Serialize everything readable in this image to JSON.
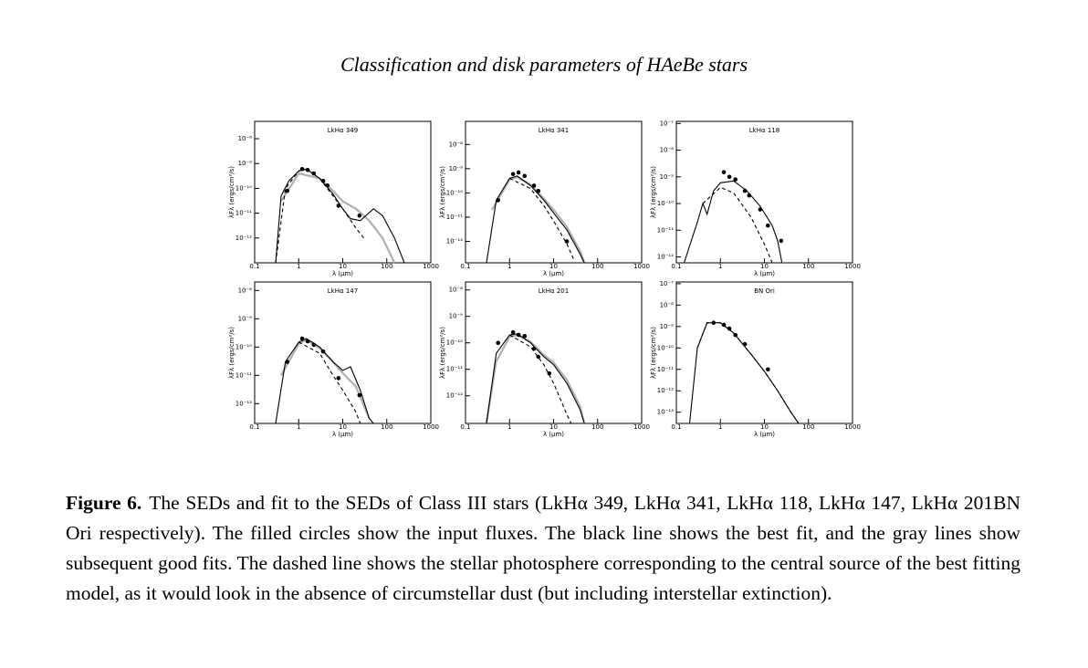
{
  "header": {
    "title": "Classification and disk parameters of HAeBe stars"
  },
  "caption": {
    "label": "Figure 6.",
    "text": "The SEDs and fit to the SEDs of Class III stars (LkHα 349, LkHα 341, LkHα 118, LkHα 147, LkHα 201BN Ori respectively). The filled circles show the input fluxes. The black line shows the best fit, and the gray lines show subsequent good fits. The dashed line shows the stellar photosphere corresponding to the central source of the best fitting model, as it would look in the absence of circumstellar dust (but including interstellar extinction)."
  },
  "chart_data": [
    {
      "type": "line",
      "title": "LkHα 349",
      "xlabel": "λ (μm)",
      "ylabel": "λFλ (ergs/cm²/s)",
      "log_x": true,
      "log_y": true,
      "xlim": [
        0.1,
        1000
      ],
      "xticks": [
        0.1,
        1,
        10,
        100,
        1000
      ],
      "ylim": [
        1e-13,
        5e-08
      ],
      "yticks": [
        {
          "value": 1e-08,
          "label": "10⁻⁸"
        },
        {
          "value": 1e-09,
          "label": "10⁻⁹"
        },
        {
          "value": 1e-10,
          "label": "10⁻¹⁰"
        },
        {
          "value": 1e-11,
          "label": "10⁻¹¹"
        },
        {
          "value": 1e-12,
          "label": "10⁻¹²"
        }
      ],
      "series": [
        {
          "style": "gray",
          "color": "#b0b0b0",
          "x": [
            0.4,
            1,
            3,
            6,
            10,
            20,
            40,
            80,
            150
          ],
          "values": [
            3e-11,
            4e-10,
            2.5e-10,
            8e-11,
            3e-11,
            1.5e-11,
            5e-12,
            1e-12,
            1e-13
          ]
        },
        {
          "style": "dashed",
          "color": "#000000",
          "x": [
            0.3,
            0.5,
            1,
            1.5,
            3,
            6,
            10,
            20,
            30
          ],
          "values": [
            1e-13,
            1e-10,
            5e-10,
            6e-10,
            2.5e-10,
            5e-11,
            1.5e-11,
            2.5e-12,
            1e-12
          ]
        },
        {
          "style": "solid",
          "color": "#000000",
          "x": [
            0.3,
            0.4,
            0.6,
            1,
            1.5,
            3,
            6,
            10,
            15,
            25,
            50,
            80,
            150,
            250
          ],
          "values": [
            1e-13,
            5e-11,
            2e-10,
            5e-10,
            6e-10,
            2.5e-10,
            6e-11,
            1.5e-11,
            6e-12,
            5e-12,
            1.5e-11,
            8e-12,
            1e-12,
            1e-13
          ]
        },
        {
          "style": "points",
          "color": "#000000",
          "x": [
            0.55,
            1.2,
            1.6,
            2.2,
            3.6,
            4.5,
            8,
            24
          ],
          "values": [
            8e-11,
            6e-10,
            5.5e-10,
            4e-10,
            2e-10,
            1.3e-10,
            2e-11,
            8e-12
          ]
        }
      ]
    },
    {
      "type": "line",
      "title": "LkHα 341",
      "xlabel": "λ (μm)",
      "ylabel": "λFλ (ergs/cm²/s)",
      "log_x": true,
      "log_y": true,
      "xlim": [
        0.1,
        1000
      ],
      "xticks": [
        0.1,
        1,
        10,
        100,
        1000
      ],
      "ylim": [
        1.3e-13,
        9e-08
      ],
      "yticks": [
        {
          "value": 1e-08,
          "label": "10⁻⁸"
        },
        {
          "value": 1e-09,
          "label": "10⁻⁹"
        },
        {
          "value": 1e-10,
          "label": "10⁻¹⁰"
        },
        {
          "value": 1e-11,
          "label": "10⁻¹¹"
        },
        {
          "value": 1e-12,
          "label": "10⁻¹²"
        }
      ],
      "series": [
        {
          "style": "gray",
          "color": "#b0b0b0",
          "x": [
            0.4,
            1,
            1.5,
            3,
            6,
            10,
            20,
            40,
            50
          ],
          "values": [
            2e-11,
            3.5e-10,
            4.5e-10,
            2.2e-10,
            6e-11,
            2e-11,
            4e-12,
            4e-13,
            1.3e-13
          ]
        },
        {
          "style": "dashed",
          "color": "#000000",
          "x": [
            1,
            3,
            6,
            10,
            20,
            30
          ],
          "values": [
            4e-10,
            1.5e-10,
            3e-11,
            7e-12,
            8e-13,
            1.5e-13
          ]
        },
        {
          "style": "solid",
          "color": "#000000",
          "x": [
            0.3,
            0.5,
            1,
            1.5,
            3,
            6,
            10,
            20,
            40,
            50
          ],
          "values": [
            1.3e-13,
            5e-11,
            4e-10,
            5e-10,
            2e-10,
            5e-11,
            1.5e-11,
            3e-12,
            3e-13,
            1.3e-13
          ]
        },
        {
          "style": "points",
          "color": "#000000",
          "x": [
            0.55,
            1.2,
            1.6,
            2.2,
            3.6,
            4.5,
            20
          ],
          "values": [
            5e-11,
            6e-10,
            7e-10,
            5e-10,
            2e-10,
            1.2e-10,
            1e-12
          ]
        }
      ]
    },
    {
      "type": "line",
      "title": "LkHα 118",
      "xlabel": "λ (μm)",
      "ylabel": "λFλ (ergs/cm²/s)",
      "log_x": true,
      "log_y": true,
      "xlim": [
        0.1,
        1000
      ],
      "xticks": [
        0.1,
        1,
        10,
        100,
        1000
      ],
      "ylim": [
        6e-13,
        1.2e-07
      ],
      "yticks": [
        {
          "value": 1e-07,
          "label": "10⁻⁷"
        },
        {
          "value": 1e-08,
          "label": "10⁻⁸"
        },
        {
          "value": 1e-09,
          "label": "10⁻⁹"
        },
        {
          "value": 1e-10,
          "label": "10⁻¹⁰"
        },
        {
          "value": 1e-11,
          "label": "10⁻¹¹"
        },
        {
          "value": 1e-12,
          "label": "10⁻¹²"
        }
      ],
      "series": [
        {
          "style": "dashed",
          "color": "#000000",
          "x": [
            0.4,
            1,
            2,
            5,
            10,
            15
          ],
          "values": [
            1e-10,
            4e-10,
            2.5e-10,
            3e-11,
            3e-12,
            6e-13
          ]
        },
        {
          "style": "solid",
          "color": "#000000",
          "x": [
            0.15,
            0.3,
            0.4,
            0.5,
            0.7,
            1,
            2,
            4,
            8,
            15,
            20,
            25
          ],
          "values": [
            6e-13,
            2e-11,
            1e-10,
            4e-11,
            3e-10,
            6e-10,
            7e-10,
            3e-10,
            8e-11,
            1.5e-11,
            4e-12,
            6e-13
          ]
        },
        {
          "style": "points",
          "color": "#000000",
          "x": [
            1.2,
            1.6,
            2.2,
            3.6,
            4.5,
            8,
            12,
            24
          ],
          "values": [
            1.5e-09,
            1e-09,
            8e-10,
            3e-10,
            2e-10,
            6e-11,
            1.5e-11,
            4e-12
          ]
        }
      ]
    },
    {
      "type": "line",
      "title": "LkHα 147",
      "xlabel": "λ (μm)",
      "ylabel": "λFλ (ergs/cm²/s)",
      "log_x": true,
      "log_y": true,
      "xlim": [
        0.1,
        1000
      ],
      "xticks": [
        0.1,
        1,
        10,
        100,
        1000
      ],
      "ylim": [
        2e-13,
        2e-08
      ],
      "yticks": [
        {
          "value": 1e-08,
          "label": "10⁻⁸"
        },
        {
          "value": 1e-09,
          "label": "10⁻⁹"
        },
        {
          "value": 1e-10,
          "label": "10⁻¹⁰"
        },
        {
          "value": 1e-11,
          "label": "10⁻¹¹"
        },
        {
          "value": 1e-12,
          "label": "10⁻¹²"
        }
      ],
      "series": [
        {
          "style": "gray",
          "color": "#b0b0b0",
          "x": [
            0.4,
            1,
            1.5,
            3,
            6,
            10,
            20,
            40
          ],
          "values": [
            1e-11,
            1.3e-10,
            1.8e-10,
            9e-11,
            3e-11,
            1.2e-11,
            4e-12,
            3e-13
          ]
        },
        {
          "style": "dashed",
          "color": "#000000",
          "x": [
            1,
            3,
            6,
            10,
            20,
            25
          ],
          "values": [
            1.5e-10,
            6e-11,
            1e-11,
            3e-12,
            5e-13,
            2e-13
          ]
        },
        {
          "style": "solid",
          "color": "#000000",
          "x": [
            0.3,
            0.5,
            1,
            1.5,
            3,
            6,
            10,
            15,
            25,
            40,
            50
          ],
          "values": [
            2e-13,
            3e-11,
            1.5e-10,
            2e-10,
            1e-10,
            3e-11,
            1.5e-11,
            2e-11,
            3e-12,
            3e-13,
            2e-13
          ]
        },
        {
          "style": "points",
          "color": "#000000",
          "x": [
            0.55,
            1.2,
            1.6,
            2.2,
            3.6,
            8,
            24
          ],
          "values": [
            3e-11,
            2e-10,
            1.6e-10,
            1.2e-10,
            7e-11,
            8e-12,
            2e-12
          ]
        }
      ]
    },
    {
      "type": "line",
      "title": "LkHα 201",
      "xlabel": "λ (μm)",
      "ylabel": "λFλ (ergs/cm²/s)",
      "log_x": true,
      "log_y": true,
      "xlim": [
        0.1,
        1000
      ],
      "xticks": [
        0.1,
        1,
        10,
        100,
        1000
      ],
      "ylim": [
        9e-14,
        2e-08
      ],
      "yticks": [
        {
          "value": 1e-08,
          "label": "10⁻⁸"
        },
        {
          "value": 1e-09,
          "label": "10⁻⁹"
        },
        {
          "value": 1e-10,
          "label": "10⁻¹⁰"
        },
        {
          "value": 1e-11,
          "label": "10⁻¹¹"
        },
        {
          "value": 1e-12,
          "label": "10⁻¹²"
        }
      ],
      "series": [
        {
          "style": "gray",
          "color": "#b0b0b0",
          "x": [
            0.3,
            0.5,
            1,
            1.5,
            3,
            6,
            10,
            20,
            40,
            50
          ],
          "values": [
            1e-13,
            2e-11,
            1.7e-10,
            2e-10,
            1.1e-10,
            3.5e-11,
            1.8e-11,
            4e-12,
            4e-13,
            9e-14
          ]
        },
        {
          "style": "dashed",
          "color": "#000000",
          "x": [
            1,
            3,
            6,
            10,
            20,
            25
          ],
          "values": [
            2e-10,
            7e-11,
            1.5e-11,
            3e-12,
            2e-13,
            9e-14
          ]
        },
        {
          "style": "solid",
          "color": "#000000",
          "x": [
            0.3,
            0.5,
            1,
            1.5,
            3,
            6,
            10,
            20,
            40,
            50
          ],
          "values": [
            9e-14,
            4e-11,
            2e-10,
            2.2e-10,
            1e-10,
            3e-11,
            1.5e-11,
            3e-12,
            3e-13,
            9e-14
          ]
        },
        {
          "style": "points",
          "color": "#000000",
          "x": [
            0.55,
            1.2,
            1.6,
            2.2,
            3.6,
            4.5,
            8
          ],
          "values": [
            1e-10,
            2.5e-10,
            2e-10,
            1.8e-10,
            6e-11,
            3e-11,
            7e-12
          ]
        }
      ]
    },
    {
      "type": "line",
      "title": "BN Ori",
      "xlabel": "λ (μm)",
      "ylabel": "λFλ (ergs/cm²/s)",
      "log_x": true,
      "log_y": true,
      "xlim": [
        0.1,
        1000
      ],
      "xticks": [
        0.1,
        1,
        10,
        100,
        1000
      ],
      "ylim": [
        3e-14,
        1.2e-07
      ],
      "yticks": [
        {
          "value": 1e-07,
          "label": "10⁻⁷"
        },
        {
          "value": 1e-08,
          "label": "10⁻⁸"
        },
        {
          "value": 1e-09,
          "label": "10⁻⁹"
        },
        {
          "value": 1e-10,
          "label": "10⁻¹⁰"
        },
        {
          "value": 1e-11,
          "label": "10⁻¹¹"
        },
        {
          "value": 1e-12,
          "label": "10⁻¹²"
        },
        {
          "value": 1e-13,
          "label": "10⁻¹³"
        }
      ],
      "series": [
        {
          "style": "dashed",
          "color": "#000000",
          "x": [
            0.3,
            0.5,
            1,
            2,
            5,
            10,
            20,
            40,
            60
          ],
          "values": [
            1e-10,
            1.5e-09,
            1.5e-09,
            5e-10,
            5e-11,
            8e-12,
            1e-12,
            1e-13,
            3e-14
          ]
        },
        {
          "style": "solid",
          "color": "#000000",
          "x": [
            0.2,
            0.3,
            0.5,
            1,
            2,
            5,
            10,
            20,
            40,
            60
          ],
          "values": [
            3e-14,
            1e-10,
            1.5e-09,
            1.5e-09,
            5e-10,
            5e-11,
            8e-12,
            1e-12,
            1e-13,
            3e-14
          ]
        },
        {
          "style": "points",
          "color": "#000000",
          "x": [
            0.7,
            1.2,
            1.6,
            2.2,
            3.6,
            12
          ],
          "values": [
            1.5e-09,
            1.2e-09,
            8e-10,
            4e-10,
            1.5e-10,
            1e-11
          ]
        }
      ]
    }
  ]
}
